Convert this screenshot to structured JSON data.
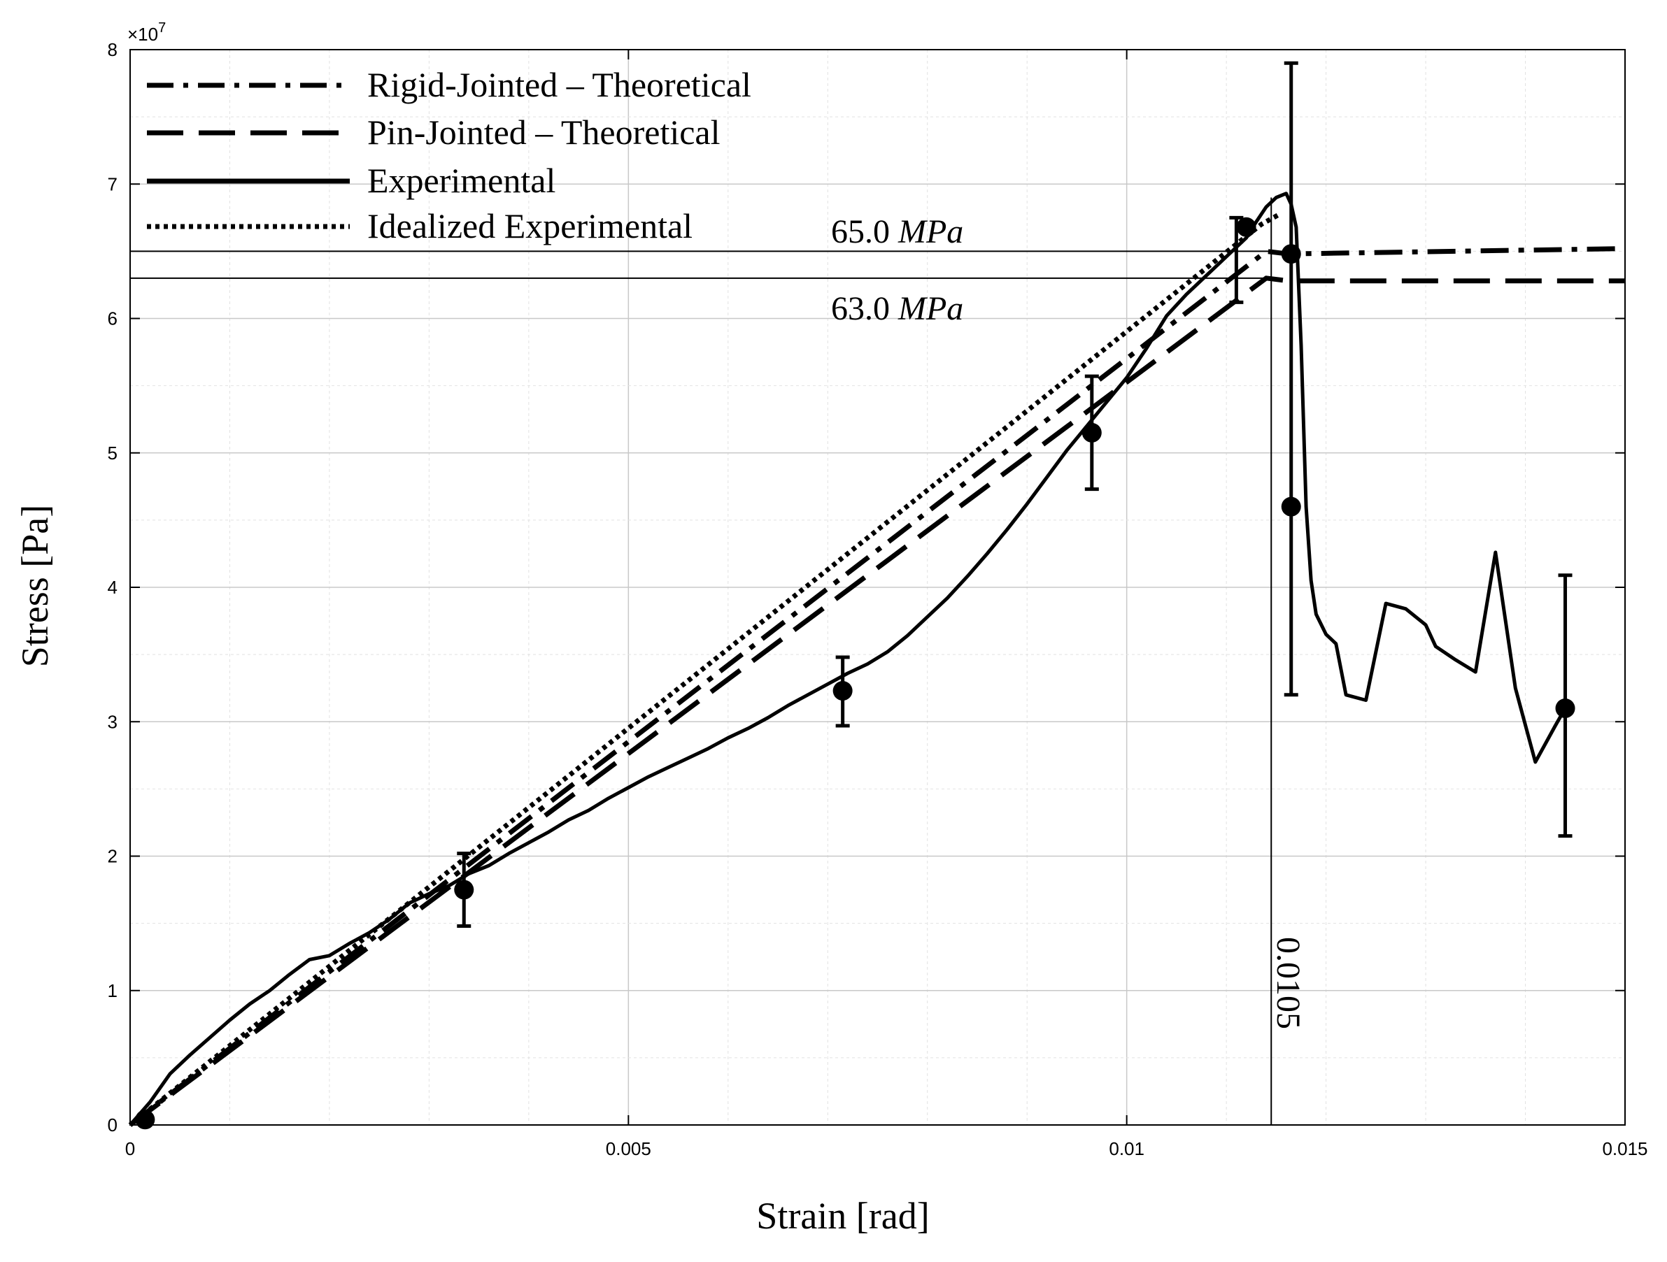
{
  "chart_data": {
    "type": "line",
    "title": "",
    "xlabel": "Strain [rad]",
    "ylabel": "Stress [Pa]",
    "xlim": [
      0,
      0.015
    ],
    "ylim": [
      0,
      80000000
    ],
    "y_exponent_label": "×10",
    "y_exponent_power": "7",
    "x_ticks": [
      0,
      0.005,
      0.01,
      0.015
    ],
    "x_tick_labels": [
      "0",
      "0.005",
      "0.01",
      "0.015"
    ],
    "y_ticks": [
      0,
      10000000,
      20000000,
      30000000,
      40000000,
      50000000,
      60000000,
      70000000,
      80000000
    ],
    "y_tick_labels": [
      "0",
      "1",
      "2",
      "3",
      "4",
      "5",
      "6",
      "7",
      "8"
    ],
    "grid": true,
    "legend_position": "top-left",
    "series": [
      {
        "name": "Rigid-Jointed – Theoretical",
        "style": "dashdot",
        "x": [
          0,
          0.0114,
          0.01162,
          0.015
        ],
        "y": [
          0,
          65000000,
          64800000,
          65200000
        ]
      },
      {
        "name": "Pin-Jointed – Theoretical",
        "style": "dashed",
        "x": [
          0,
          0.0114,
          0.01162,
          0.015
        ],
        "y": [
          0,
          63000000,
          62800000,
          62800000
        ]
      },
      {
        "name": "Experimental",
        "style": "solid",
        "x": [
          0,
          0.0002,
          0.0004,
          0.0006,
          0.0008,
          0.001,
          0.0012,
          0.0014,
          0.0016,
          0.0018,
          0.002,
          0.0022,
          0.0024,
          0.0026,
          0.0028,
          0.003,
          0.0032,
          0.0034,
          0.0036,
          0.0038,
          0.004,
          0.0042,
          0.0044,
          0.0046,
          0.0048,
          0.005,
          0.0052,
          0.0054,
          0.0056,
          0.0058,
          0.006,
          0.0062,
          0.0064,
          0.0066,
          0.0068,
          0.007,
          0.0072,
          0.0074,
          0.0076,
          0.0078,
          0.008,
          0.0082,
          0.0084,
          0.0086,
          0.0088,
          0.009,
          0.0092,
          0.0094,
          0.0096,
          0.0098,
          0.01,
          0.0102,
          0.0104,
          0.0106,
          0.0108,
          0.011,
          0.0112,
          0.0113,
          0.0114,
          0.0115,
          0.0116,
          0.01165,
          0.0117,
          0.01175,
          0.0118,
          0.01185,
          0.0119,
          0.012,
          0.0121,
          0.0122,
          0.0124,
          0.0126,
          0.0128,
          0.013,
          0.0131,
          0.0133,
          0.0135,
          0.0137,
          0.0139,
          0.0141,
          0.0143,
          0.0144
        ],
        "y": [
          0,
          1700000,
          3800000,
          5200000,
          6500000,
          7800000,
          9000000,
          10000000,
          11200000,
          12300000,
          12600000,
          13500000,
          14300000,
          15300000,
          16500000,
          17200000,
          17800000,
          18700000,
          19300000,
          20200000,
          21000000,
          21800000,
          22700000,
          23400000,
          24300000,
          25100000,
          25900000,
          26600000,
          27300000,
          28000000,
          28800000,
          29500000,
          30300000,
          31200000,
          32000000,
          32800000,
          33600000,
          34300000,
          35200000,
          36400000,
          37800000,
          39200000,
          40800000,
          42500000,
          44300000,
          46200000,
          48200000,
          50200000,
          52000000,
          53800000,
          55600000,
          57800000,
          60200000,
          61800000,
          63200000,
          64600000,
          66000000,
          67200000,
          68300000,
          69000000,
          69300000,
          68500000,
          66800000,
          58000000,
          46000000,
          40500000,
          38000000,
          36500000,
          35800000,
          32000000,
          31600000,
          38800000,
          38400000,
          37200000,
          35600000,
          34600000,
          33700000,
          42600000,
          32500000,
          27000000,
          29700000,
          31000000
        ]
      },
      {
        "name": "Idealized Experimental",
        "style": "dotted",
        "x": [
          0,
          0.01135,
          0.01152
        ],
        "y": [
          0,
          67000000,
          67700000
        ]
      }
    ],
    "markers": [
      {
        "x": 0.00015,
        "y": 400000
      },
      {
        "x": 0.00335,
        "y": 17500000
      },
      {
        "x": 0.00715,
        "y": 32300000
      },
      {
        "x": 0.00965,
        "y": 51500000
      },
      {
        "x": 0.0112,
        "y": 66800000
      },
      {
        "x": 0.01165,
        "y": 64800000
      },
      {
        "x": 0.01165,
        "y": 46000000
      },
      {
        "x": 0.0144,
        "y": 31000000
      }
    ],
    "error_bars": [
      {
        "x": 0.00335,
        "low": 14800000,
        "high": 20200000
      },
      {
        "x": 0.00715,
        "low": 29700000,
        "high": 34800000
      },
      {
        "x": 0.00965,
        "low": 47300000,
        "high": 55700000
      },
      {
        "x": 0.0111,
        "low": 61200000,
        "high": 67500000
      },
      {
        "x": 0.01165,
        "low": 32000000,
        "high": 79000000
      },
      {
        "x": 0.0144,
        "low": 21500000,
        "high": 40900000
      }
    ],
    "reference_lines": [
      {
        "type": "horizontal",
        "value": 65000000,
        "x_end": 0.01145
      },
      {
        "type": "horizontal",
        "value": 63000000,
        "x_end": 0.01145
      },
      {
        "type": "vertical",
        "value": 0.01145
      }
    ],
    "annotations": [
      {
        "number": "65.0",
        "unit": "MPa"
      },
      {
        "number": "63.0",
        "unit": "MPa"
      },
      {
        "text": "0.0105"
      }
    ]
  }
}
